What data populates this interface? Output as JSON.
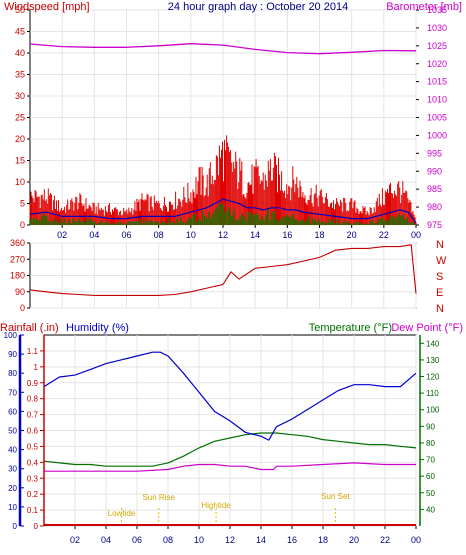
{
  "page": {
    "title": "24 hour graph day : October 20 2014"
  },
  "colors": {
    "wind": "#e00000",
    "windavg": "#0000c0",
    "gust": "#008000",
    "barometer": "#cc00cc",
    "direction": "#c00000",
    "rain": "#cc0000",
    "humidity": "#0000cc",
    "temperature": "#007000",
    "dewpoint": "#cc00cc",
    "sunmark": "#e0c000",
    "grid": "#e4e4e4",
    "axis": "#000000"
  },
  "chart_data": [
    {
      "id": "wind-barometer",
      "type": "line",
      "title": "24 hour graph day : October 20 2014",
      "ylabel_left": "Windspeed [mph]",
      "ylabel_right": "Barometer [mb]",
      "ylim_left": [
        0,
        50
      ],
      "ylim_right": [
        975,
        1035
      ],
      "yticks_left": [
        "0",
        "5",
        "10",
        "15",
        "20",
        "25",
        "30",
        "35",
        "40",
        "45",
        "50"
      ],
      "yticks_right": [
        "975",
        "980",
        "985",
        "990",
        "995",
        "1000",
        "1005",
        "1010",
        "1015",
        "1020",
        "1025",
        "1030",
        "1035"
      ],
      "xlim": [
        0,
        24
      ],
      "xticks": [
        "02",
        "04",
        "06",
        "08",
        "10",
        "12",
        "14",
        "16",
        "18",
        "20",
        "22",
        "00"
      ],
      "grid": true,
      "series": [
        {
          "key": "gust",
          "style": "bars",
          "x": [
            0,
            1,
            2,
            3,
            4,
            5,
            6,
            7,
            8,
            9,
            10,
            10.5,
            11,
            11.5,
            12,
            12.5,
            13,
            13.5,
            14,
            14.5,
            15,
            15.5,
            16,
            16.5,
            17,
            18,
            19,
            20,
            21,
            22,
            22.5,
            23,
            23.5,
            24
          ],
          "values": [
            7,
            7,
            4,
            6,
            4,
            4,
            3,
            6,
            5,
            6,
            8,
            11,
            10,
            14,
            18,
            15,
            13,
            10,
            12,
            11,
            14,
            12,
            10,
            11,
            8,
            7,
            5,
            5,
            3,
            7,
            9,
            9,
            6,
            1
          ]
        },
        {
          "key": "windavg",
          "style": "line",
          "x": [
            0,
            1,
            2,
            3,
            4,
            5,
            6,
            7,
            8,
            9,
            10,
            10.5,
            11,
            11.5,
            12,
            12.5,
            13,
            13.5,
            14,
            14.5,
            15,
            15.5,
            16,
            16.5,
            17,
            18,
            19,
            20,
            21,
            22,
            22.5,
            23,
            23.5,
            24
          ],
          "values": [
            2.5,
            3,
            2,
            2,
            2,
            1.5,
            1.5,
            2,
            2,
            2,
            3,
            3.5,
            4,
            5,
            6,
            5.5,
            5,
            4,
            4,
            3.5,
            4,
            4,
            3.5,
            3.5,
            3,
            2.5,
            2,
            1.5,
            1.5,
            2.5,
            3,
            3.5,
            3,
            0.5
          ]
        },
        {
          "key": "wind",
          "style": "bars",
          "x": [
            0,
            1,
            2,
            3,
            4,
            5,
            6,
            7,
            8,
            9,
            10,
            10.5,
            11,
            11.5,
            12,
            12.5,
            13,
            13.5,
            14,
            14.5,
            15,
            15.5,
            16,
            16.5,
            17,
            18,
            19,
            20,
            21,
            22,
            22.5,
            23,
            23.5,
            24
          ],
          "values": [
            1.5,
            2,
            1,
            1,
            1,
            0.5,
            0.5,
            1,
            1,
            1,
            1.5,
            2,
            2.5,
            3,
            4,
            3.5,
            3,
            2.5,
            2.5,
            2,
            3,
            2.5,
            2.5,
            2,
            1.5,
            1,
            1,
            0.5,
            0.5,
            1.5,
            2,
            2,
            1.5,
            0
          ]
        },
        {
          "key": "barometer",
          "style": "line",
          "axis": "right",
          "x": [
            0,
            2,
            4,
            6,
            8,
            10,
            12,
            14,
            16,
            18,
            20,
            22,
            24
          ],
          "values": [
            1025.5,
            1024.8,
            1024.6,
            1024.6,
            1025.0,
            1025.6,
            1025.2,
            1024.0,
            1023.1,
            1022.8,
            1023.2,
            1023.7,
            1023.6
          ]
        }
      ]
    },
    {
      "id": "wind-direction",
      "type": "line",
      "ylim": [
        0,
        360
      ],
      "yticks": [
        "0",
        "90",
        "180",
        "270",
        "360"
      ],
      "compass": [
        "N",
        "W",
        "S",
        "E",
        "N"
      ],
      "xlim": [
        0,
        24
      ],
      "series": [
        {
          "key": "direction",
          "x": [
            0,
            1,
            2,
            3,
            4,
            5,
            6,
            7,
            8,
            9,
            10,
            11,
            12,
            12.5,
            13,
            14,
            15,
            16,
            17,
            18,
            19,
            20,
            21,
            22,
            23,
            23.7,
            24
          ],
          "values": [
            100,
            90,
            80,
            75,
            70,
            70,
            70,
            70,
            70,
            75,
            90,
            110,
            130,
            200,
            160,
            220,
            230,
            240,
            260,
            280,
            320,
            330,
            330,
            340,
            340,
            350,
            80
          ]
        }
      ]
    },
    {
      "id": "rain-humidity-temp",
      "type": "line",
      "ylabel_rain": "Rainfall (.in)",
      "ylabel_humidity": "Humidity (%)",
      "ylabel_temp": "Temperature (°F)",
      "ylabel_dew": "Dew Point (°F)",
      "ylim_rain": [
        0,
        1.2
      ],
      "yticks_rain": [
        "0",
        "0.1",
        "0.2",
        "0.3",
        "0.4",
        "0.5",
        "0.6",
        "0.7",
        "0.8",
        "0.9",
        "1",
        "1.1"
      ],
      "ylim_humidity": [
        0,
        100
      ],
      "yticks_humidity": [
        "0",
        "10",
        "20",
        "30",
        "40",
        "50",
        "60",
        "70",
        "80",
        "90",
        "100"
      ],
      "ylim_temp": [
        30,
        145
      ],
      "yticks_temp": [
        "40",
        "50",
        "60",
        "70",
        "80",
        "90",
        "100",
        "110",
        "120",
        "130",
        "140"
      ],
      "xlim": [
        0,
        24
      ],
      "xticks": [
        "02",
        "04",
        "06",
        "08",
        "10",
        "12",
        "14",
        "16",
        "18",
        "20",
        "22",
        "00"
      ],
      "annotations": [
        {
          "label": "Lowtide",
          "x": 5.0
        },
        {
          "label": "Sun Rise",
          "x": 7.4
        },
        {
          "label": "Hightide",
          "x": 11.1
        },
        {
          "label": "Sun Set",
          "x": 18.8
        }
      ],
      "series": [
        {
          "key": "humidity",
          "x": [
            0,
            1,
            2,
            3,
            4,
            5,
            6,
            7,
            7.5,
            8,
            9,
            10,
            11,
            12,
            13,
            14,
            14.5,
            15,
            16,
            17,
            18,
            19,
            20,
            21,
            22,
            23,
            24
          ],
          "values": [
            73,
            78,
            79,
            82,
            85,
            87,
            89,
            91,
            91,
            89,
            80,
            70,
            60,
            55,
            49,
            47,
            45,
            52,
            56,
            61,
            66,
            71,
            74,
            74,
            73,
            73,
            80
          ]
        },
        {
          "key": "temperature",
          "x": [
            0,
            1,
            2,
            3,
            4,
            5,
            6,
            7,
            8,
            9,
            10,
            11,
            12,
            13,
            14,
            15,
            16,
            17,
            18,
            19,
            20,
            21,
            22,
            23,
            24
          ],
          "values": [
            69,
            68,
            67,
            67,
            66,
            66,
            66,
            66,
            68,
            72,
            77,
            81,
            83,
            85,
            86,
            86,
            85,
            84,
            82,
            81,
            80,
            79,
            79,
            78,
            77
          ]
        },
        {
          "key": "dewpoint",
          "x": [
            0,
            2,
            4,
            6,
            8,
            9,
            10,
            11,
            12,
            13,
            14,
            14.8,
            15,
            16,
            18,
            20,
            22,
            24
          ],
          "values": [
            63,
            63,
            63,
            63,
            64,
            66,
            67,
            67,
            66,
            66,
            64,
            64,
            66,
            66,
            67,
            68,
            67,
            67
          ]
        },
        {
          "key": "rain",
          "x": [
            0,
            24
          ],
          "values": [
            0,
            0
          ]
        }
      ]
    }
  ]
}
